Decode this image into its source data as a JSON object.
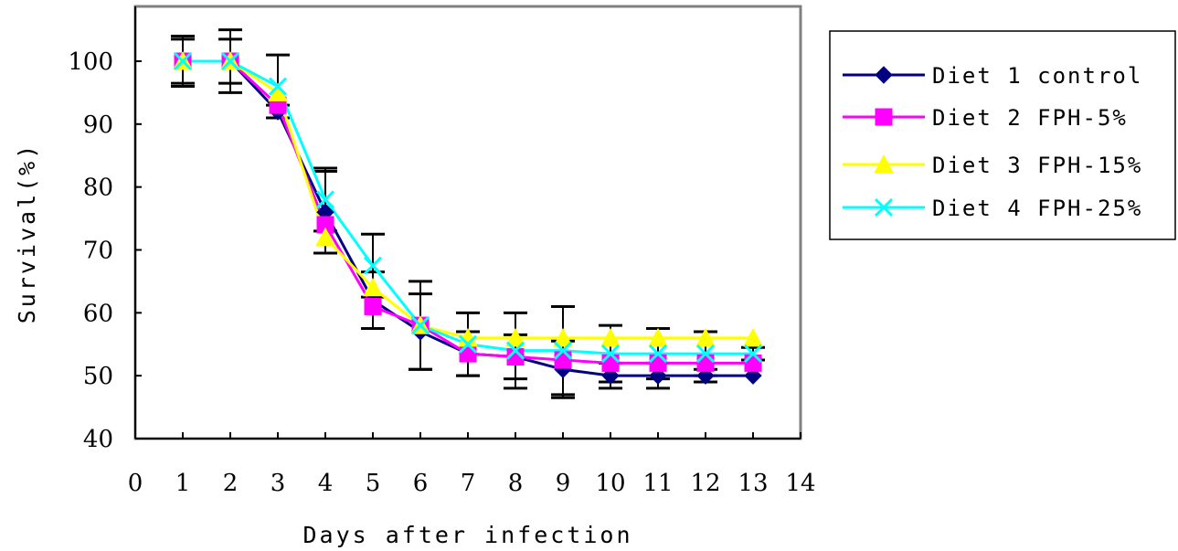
{
  "chart_data": {
    "type": "line",
    "xlabel": "Days after infection",
    "ylabel": "Survival(%)",
    "xlim": [
      0,
      14
    ],
    "ylim": [
      40,
      100
    ],
    "x_ticks": [
      "0",
      "1",
      "2",
      "3",
      "4",
      "5",
      "6",
      "7",
      "8",
      "9",
      "10",
      "11",
      "12",
      "13",
      "14"
    ],
    "y_ticks": [
      "40",
      "50",
      "60",
      "70",
      "80",
      "90",
      "100"
    ],
    "grid": false,
    "legend_position": "right",
    "x": [
      1,
      2,
      3,
      4,
      5,
      6,
      7,
      8,
      9,
      10,
      11,
      12,
      13
    ],
    "series": [
      {
        "name": "Diet 1 control",
        "color": "#000080",
        "marker": "diamond",
        "values": [
          100,
          100,
          92,
          76,
          62,
          57,
          53.5,
          53,
          51,
          50,
          50,
          50,
          50
        ],
        "errors": [
          4,
          5,
          1,
          6.5,
          4.5,
          6,
          3.5,
          3.5,
          4.5,
          2,
          2,
          1,
          0
        ]
      },
      {
        "name": "Diet 2 FPH-5%",
        "color": "#FF00FF",
        "marker": "square",
        "values": [
          100,
          100,
          93,
          74,
          61,
          58,
          53.5,
          53,
          52.5,
          52,
          52,
          52,
          52
        ],
        "errors": [
          0,
          0,
          0,
          0,
          0,
          0,
          0,
          0,
          0,
          0,
          0,
          0,
          0
        ]
      },
      {
        "name": "Diet 3 FPH-15%",
        "color": "#FFFF00",
        "marker": "triangle",
        "values": [
          100,
          100,
          95,
          72,
          64,
          58,
          56,
          56,
          56,
          56,
          56,
          56,
          56
        ],
        "errors": [
          0,
          0,
          0,
          0,
          0,
          0,
          0,
          0,
          0,
          0,
          0,
          0,
          0
        ]
      },
      {
        "name": "Diet 4 FPH-25%",
        "color": "#00FFFF",
        "marker": "x",
        "values": [
          100,
          100,
          96,
          78,
          67.5,
          58,
          55,
          54,
          54,
          53.5,
          53.5,
          53.5,
          53.5
        ],
        "errors": [
          3.5,
          3.5,
          5,
          5,
          5,
          7,
          5,
          6,
          7,
          4.5,
          4,
          3.5,
          1
        ]
      }
    ]
  }
}
